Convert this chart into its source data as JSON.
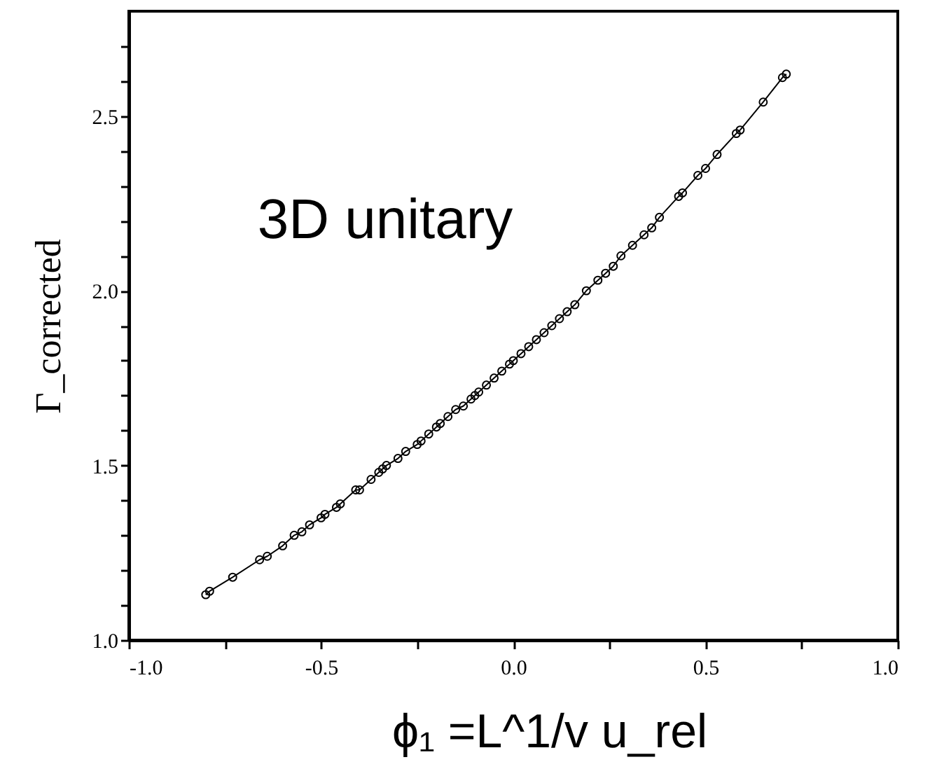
{
  "chart_data": {
    "type": "line",
    "xlabel": "ϕ₁ =L^1/v u_rel",
    "ylabel": "Γ_corrected",
    "annotations": [
      "3D unitary"
    ],
    "marker": "circle",
    "line_style": "solid",
    "grid": false,
    "xlim": [
      -1.0,
      1.0
    ],
    "ylim": [
      1.0,
      2.8
    ],
    "xticks": [
      {
        "value": -1,
        "label": "-1.0"
      },
      {
        "value": -0.75,
        "label": null
      },
      {
        "value": -0.5,
        "label": "-0.5"
      },
      {
        "value": -0.25,
        "label": null
      },
      {
        "value": 0,
        "label": "0.0"
      },
      {
        "value": 0.25,
        "label": null
      },
      {
        "value": 0.5,
        "label": "0.5"
      },
      {
        "value": 0.75,
        "label": null
      },
      {
        "value": 1,
        "label": "1.0"
      }
    ],
    "yticks": [
      {
        "value": 1,
        "label": "1.0"
      },
      {
        "value": 1.1,
        "label": null
      },
      {
        "value": 1.2,
        "label": null
      },
      {
        "value": 1.3,
        "label": null
      },
      {
        "value": 1.4,
        "label": null
      },
      {
        "value": 1.5,
        "label": "1.5"
      },
      {
        "value": 1.6,
        "label": null
      },
      {
        "value": 1.7,
        "label": null
      },
      {
        "value": 1.8,
        "label": null
      },
      {
        "value": 1.9,
        "label": null
      },
      {
        "value": 2,
        "label": "2.0"
      },
      {
        "value": 2.1,
        "label": null
      },
      {
        "value": 2.2,
        "label": null
      },
      {
        "value": 2.3,
        "label": null
      },
      {
        "value": 2.4,
        "label": null
      },
      {
        "value": 2.5,
        "label": "2.5"
      },
      {
        "value": 2.6,
        "label": null
      },
      {
        "value": 2.7,
        "label": null
      }
    ],
    "x": [
      -0.8,
      -0.79,
      -0.73,
      -0.66,
      -0.64,
      -0.6,
      -0.57,
      -0.55,
      -0.53,
      -0.5,
      -0.49,
      -0.46,
      -0.45,
      -0.41,
      -0.4,
      -0.37,
      -0.35,
      -0.34,
      -0.33,
      -0.3,
      -0.28,
      -0.25,
      -0.24,
      -0.22,
      -0.2,
      -0.19,
      -0.17,
      -0.15,
      -0.13,
      -0.11,
      -0.1,
      -0.09,
      -0.07,
      -0.05,
      -0.03,
      -0.01,
      0.0,
      0.02,
      0.04,
      0.06,
      0.08,
      0.1,
      0.12,
      0.14,
      0.16,
      0.19,
      0.22,
      0.24,
      0.26,
      0.28,
      0.31,
      0.34,
      0.36,
      0.38,
      0.43,
      0.44,
      0.48,
      0.5,
      0.53,
      0.58,
      0.59,
      0.65,
      0.7,
      0.71
    ],
    "series": [
      {
        "color": "#000000",
        "values": [
          1.13,
          1.14,
          1.18,
          1.23,
          1.24,
          1.27,
          1.3,
          1.31,
          1.33,
          1.35,
          1.36,
          1.38,
          1.39,
          1.43,
          1.43,
          1.46,
          1.48,
          1.49,
          1.5,
          1.52,
          1.54,
          1.56,
          1.57,
          1.59,
          1.61,
          1.62,
          1.64,
          1.66,
          1.67,
          1.69,
          1.7,
          1.71,
          1.73,
          1.75,
          1.77,
          1.79,
          1.8,
          1.82,
          1.84,
          1.86,
          1.88,
          1.9,
          1.92,
          1.94,
          1.96,
          2.0,
          2.03,
          2.05,
          2.07,
          2.1,
          2.13,
          2.16,
          2.18,
          2.21,
          2.27,
          2.28,
          2.33,
          2.35,
          2.39,
          2.45,
          2.46,
          2.54,
          2.61,
          2.62
        ]
      }
    ]
  }
}
